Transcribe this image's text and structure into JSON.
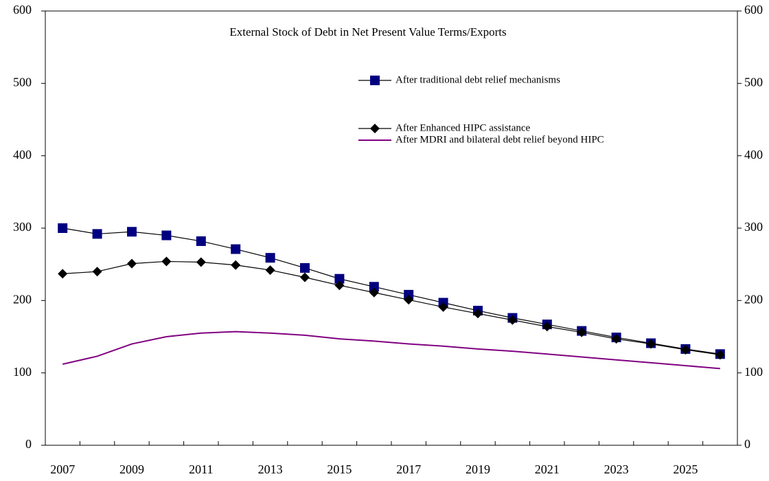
{
  "chart_data": {
    "type": "line",
    "title": "External Stock of Debt in Net Present Value Terms/Exports",
    "categories": [
      2007,
      null,
      2009,
      null,
      2011,
      null,
      2013,
      null,
      2015,
      null,
      2017,
      null,
      2019,
      null,
      2021,
      null,
      2023,
      null,
      2025,
      null
    ],
    "series": [
      {
        "name": "After traditional debt relief mechanisms",
        "color": "#000080",
        "marker": "square",
        "values": [
          300,
          292,
          295,
          290,
          282,
          271,
          259,
          245,
          230,
          219,
          208,
          197,
          186,
          176,
          167,
          158,
          149,
          141,
          133,
          126
        ]
      },
      {
        "name": "After Enhanced HIPC assistance",
        "color": "#000000",
        "marker": "diamond",
        "values": [
          237,
          240,
          251,
          254,
          253,
          249,
          242,
          232,
          221,
          211,
          201,
          191,
          182,
          173,
          164,
          156,
          147,
          140,
          132,
          125
        ]
      },
      {
        "name": "After MDRI and bilateral debt relief beyond HIPC",
        "color": "#800080",
        "marker": null,
        "values": [
          112,
          123,
          140,
          150,
          155,
          157,
          155,
          152,
          147,
          144,
          140,
          137,
          133,
          130,
          126,
          122,
          118,
          114,
          110,
          106
        ]
      }
    ],
    "ylim": [
      0,
      600
    ],
    "yticks": [
      0,
      100,
      200,
      300,
      400,
      500,
      600
    ],
    "y2lim": [
      0,
      600
    ],
    "y2ticks": [
      0,
      100,
      200,
      300,
      400,
      500,
      600
    ],
    "grid": false
  }
}
